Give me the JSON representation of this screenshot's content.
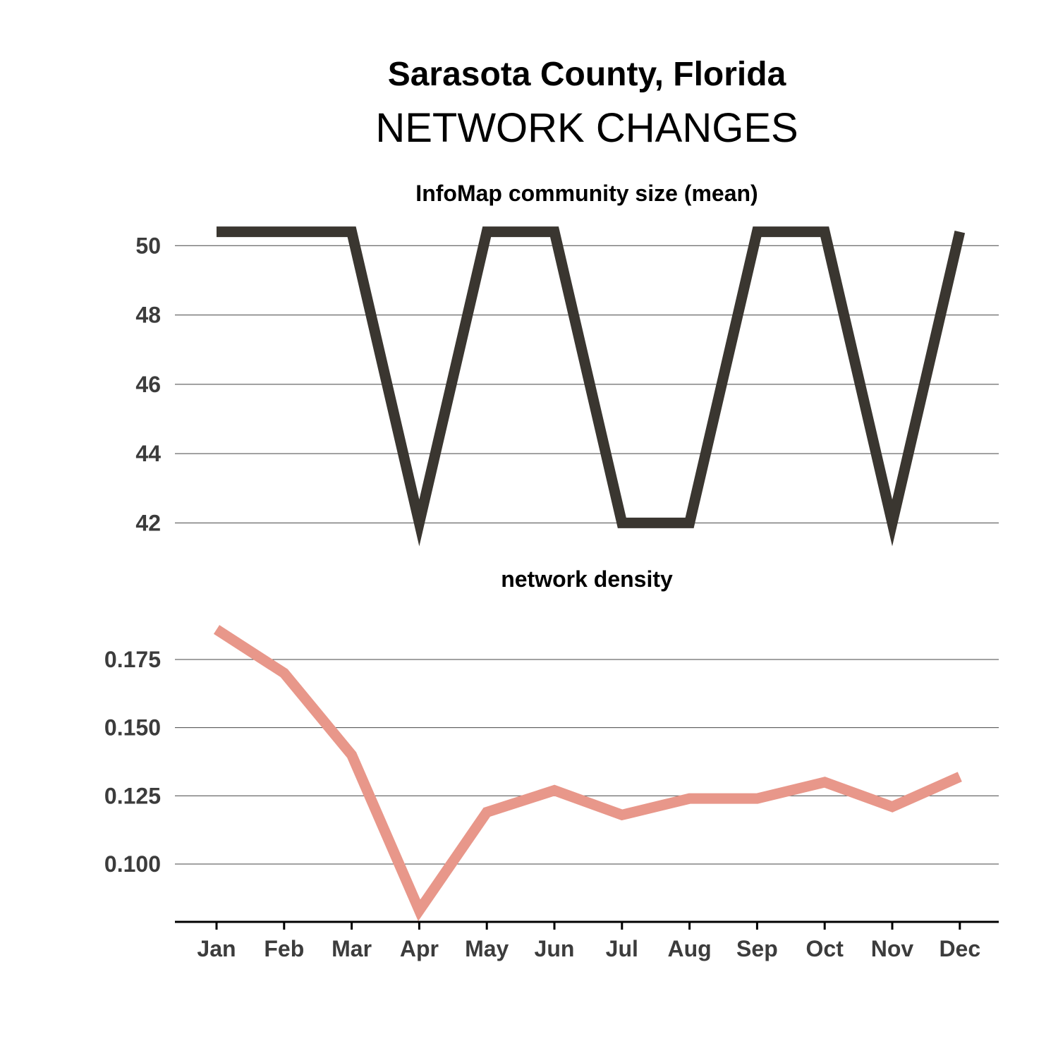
{
  "title": "Sarasota County, Florida",
  "subtitle": "NETWORK CHANGES",
  "colors": {
    "community": "#3a3630",
    "density": "#e8978a",
    "grid": "#444444",
    "axis": "#000000",
    "tick_text": "#3c3c3c"
  },
  "chart_data": [
    {
      "type": "line",
      "title": "InfoMap community size (mean)",
      "categories": [
        "Jan",
        "Feb",
        "Mar",
        "Apr",
        "May",
        "Jun",
        "Jul",
        "Aug",
        "Sep",
        "Oct",
        "Nov",
        "Dec"
      ],
      "values": [
        50.4,
        50.4,
        50.4,
        42.0,
        50.4,
        50.4,
        42.0,
        42.0,
        50.4,
        50.4,
        42.0,
        50.4
      ],
      "yticks": [
        42,
        44,
        46,
        48,
        50
      ],
      "ylim": [
        41.6,
        50.8
      ],
      "grid": true
    },
    {
      "type": "line",
      "title": "network density",
      "categories": [
        "Jan",
        "Feb",
        "Mar",
        "Apr",
        "May",
        "Jun",
        "Jul",
        "Aug",
        "Sep",
        "Oct",
        "Nov",
        "Dec"
      ],
      "values": [
        0.186,
        0.17,
        0.14,
        0.083,
        0.119,
        0.127,
        0.118,
        0.124,
        0.124,
        0.13,
        0.121,
        0.132
      ],
      "yticks": [
        "0.100",
        "0.125",
        "0.150",
        "0.175"
      ],
      "ylim": [
        0.078,
        0.19
      ],
      "grid": true
    }
  ]
}
